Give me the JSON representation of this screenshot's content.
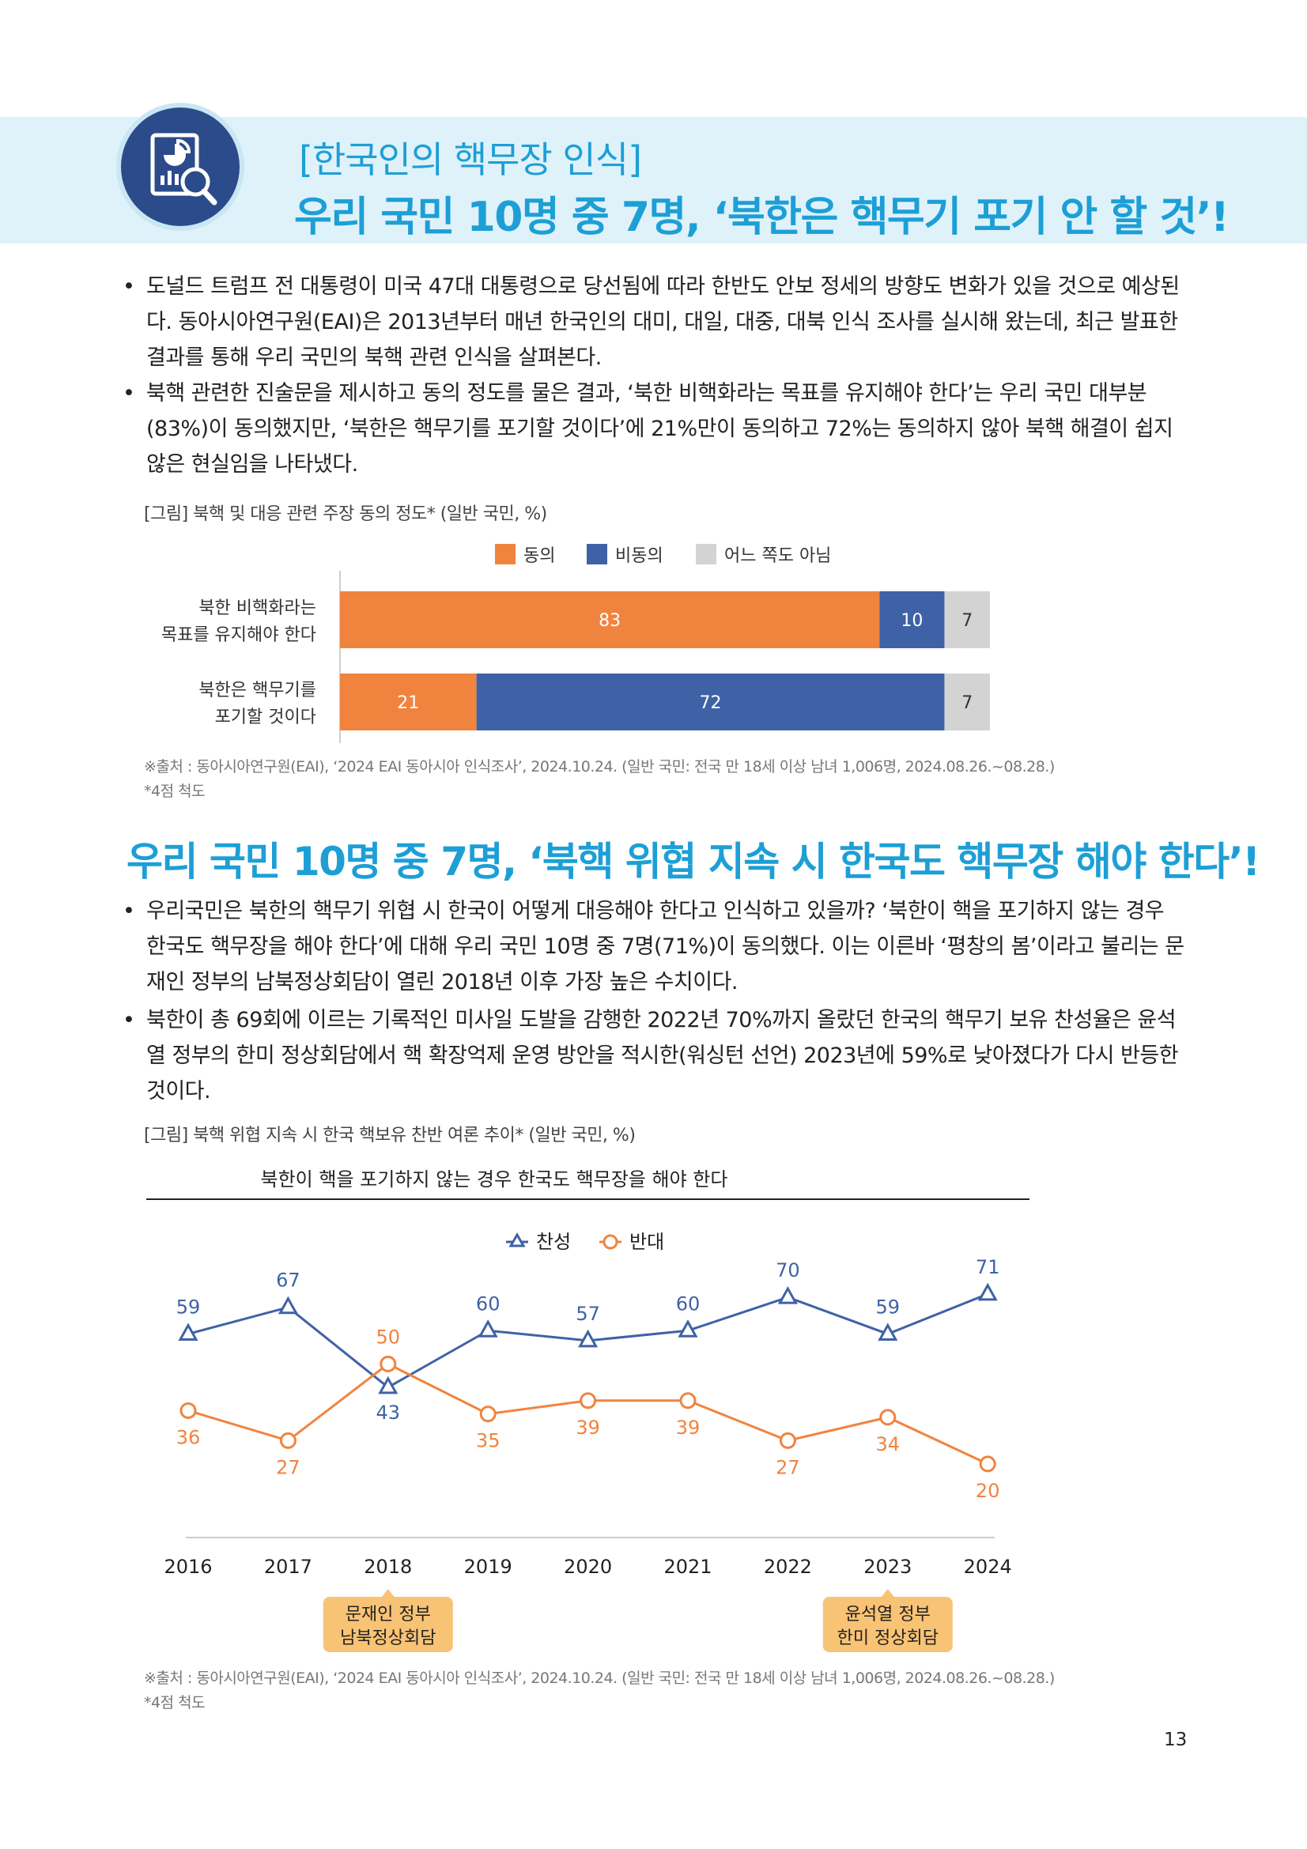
{
  "header": {
    "kicker": "[한국인의 핵무장 인식]",
    "title": "우리 국민 10명 중 7명, ‘북한은 핵무기 포기 안 할 것’!",
    "icon": "report-magnifier-icon"
  },
  "section1": {
    "bullets": [
      "도널드 트럼프 전 대통령이 미국 47대 대통령으로 당선됨에 따라 한반도 안보 정세의 방향도 변화가 있을 것으로 예상된다. 동아시아연구원(EAI)은 2013년부터 매년 한국인의 대미, 대일, 대중, 대북 인식 조사를 실시해 왔는데, 최근 발표한 결과를 통해 우리 국민의 북핵 관련 인식을 살펴본다.",
      "북핵 관련한 진술문을 제시하고 동의 정도를 물은 결과, ‘북한 비핵화라는 목표를 유지해야 한다’는 우리 국민 대부분(83%)이 동의했지만, ‘북한은 핵무기를 포기할 것이다’에 21%만이 동의하고 72%는 동의하지 않아 북핵 해결이 쉽지 않은 현실임을 나타냈다."
    ],
    "figure_caption": "[그림] 북핵 및 대응 관련 주장 동의 정도* (일반 국민, %)",
    "source": "※출처 : 동아시아연구원(EAI), ‘2024 EAI 동아시아 인식조사’, 2024.10.24. (일반 국민: 전국 만 18세 이상 남녀 1,006명, 2024.08.26.~08.28.)",
    "note": "*4점 척도"
  },
  "section2": {
    "title": "우리 국민 10명 중 7명, ‘북핵 위협 지속 시 한국도 핵무장 해야 한다’!",
    "bullets": [
      "우리국민은 북한의 핵무기 위협 시 한국이 어떻게 대응해야 한다고 인식하고 있을까? ‘북한이 핵을 포기하지 않는 경우 한국도 핵무장을 해야 한다’에 대해 우리 국민 10명 중 7명(71%)이 동의했다. 이는 이른바 ‘평창의 봄’이라고 불리는 문재인 정부의 남북정상회담이 열린 2018년 이후 가장 높은 수치이다.",
      "북한이 총 69회에 이르는 기록적인 미사일 도발을 감행한 2022년 70%까지 올랐던 한국의 핵무기 보유 찬성율은 윤석열 정부의 한미 정상회담에서 핵 확장억제 운영 방안을 적시한(워싱턴 선언) 2023년에 59%로 낮아졌다가 다시 반등한 것이다."
    ],
    "figure_caption": "[그림] 북핵 위협 지속 시 한국 핵보유 찬반 여론 추이* (일반 국민, %)",
    "source": "※출처 : 동아시아연구원(EAI), ‘2024 EAI 동아시아 인식조사’, 2024.10.24. (일반 국민: 전국 만 18세 이상 남녀 1,006명, 2024.08.26.~08.28.)",
    "note": "*4점 척도"
  },
  "page_number": "13",
  "colors": {
    "accent": "#1d9fd6",
    "orange": "#f0843e",
    "blue": "#3f62a6",
    "gray": "#d3d3d3",
    "callout": "#f8c374"
  },
  "chart_data": [
    {
      "type": "bar",
      "orientation": "horizontal-stacked",
      "legend_position": "top-center",
      "categories": [
        [
          "북한 비핵화라는",
          "목표를 유지해야 한다"
        ],
        [
          "북한은 핵무기를",
          "포기할 것이다"
        ]
      ],
      "series": [
        {
          "name": "동의",
          "values": [
            83,
            21
          ],
          "color": "#f0843e"
        },
        {
          "name": "비동의",
          "values": [
            10,
            72
          ],
          "color": "#3f62a6"
        },
        {
          "name": "어느 쪽도 아님",
          "values": [
            7,
            7
          ],
          "color": "#d3d3d3"
        }
      ]
    },
    {
      "type": "line",
      "title": "북한이 핵을 포기하지 않는 경우 한국도 핵무장을 해야 한다",
      "legend_position": "top-center",
      "x": [
        "2016",
        "2017",
        "2018",
        "2019",
        "2020",
        "2021",
        "2022",
        "2023",
        "2024"
      ],
      "ylim": [
        15,
        75
      ],
      "series": [
        {
          "name": "찬성",
          "values": [
            59,
            67,
            43,
            60,
            57,
            60,
            70,
            59,
            71
          ],
          "color": "#3f62a6",
          "marker": "triangle"
        },
        {
          "name": "반대",
          "values": [
            36,
            27,
            50,
            35,
            39,
            39,
            27,
            34,
            20
          ],
          "color": "#f0843e",
          "marker": "circle"
        }
      ],
      "annotations": [
        {
          "x": "2018",
          "lines": [
            "문재인 정부",
            "남북정상회담"
          ]
        },
        {
          "x": "2023",
          "lines": [
            "윤석열 정부",
            "한미 정상회담"
          ]
        }
      ]
    }
  ]
}
